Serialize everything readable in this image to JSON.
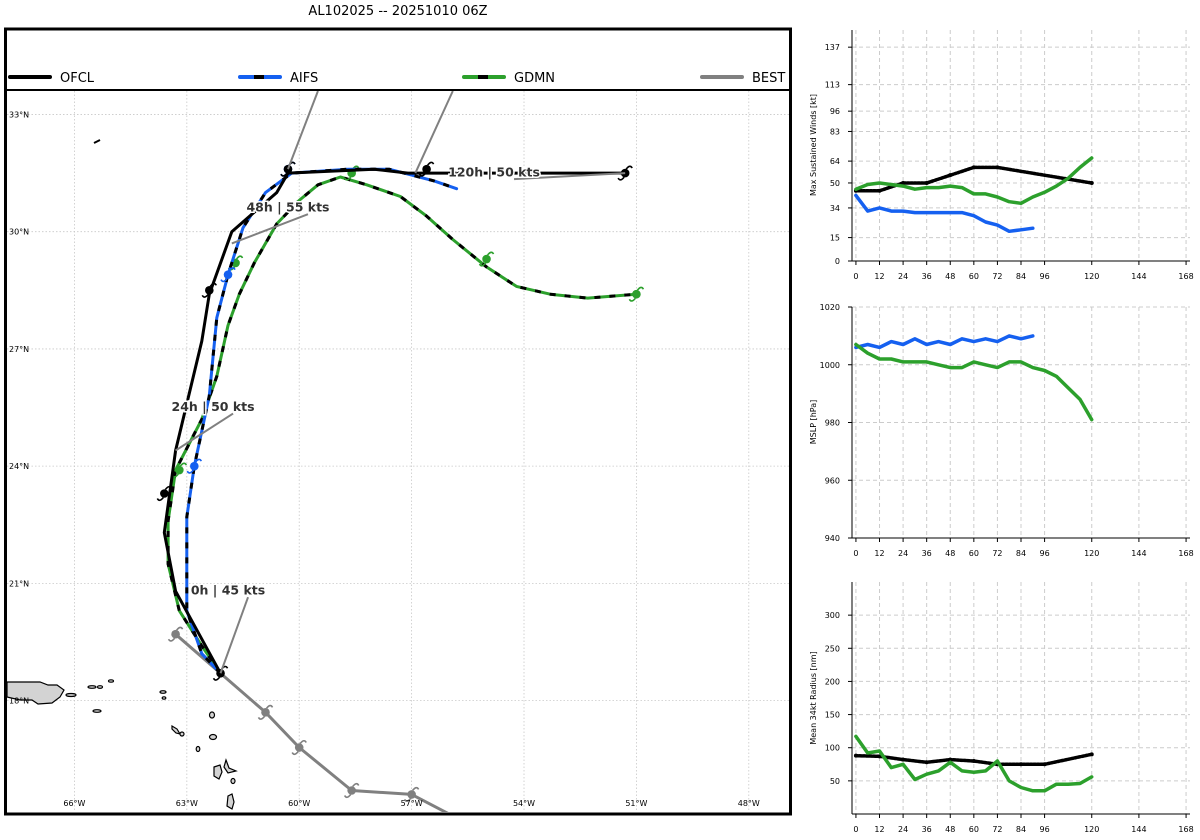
{
  "title": "AL102025 -- 20251010 06Z",
  "colors": {
    "OFCL": "#000000",
    "AIFS": "#1560f0",
    "GDMN": "#2ca02c",
    "BEST": "#808080",
    "land": "#d3d3d3",
    "grid": "#c8c8c8"
  },
  "legend": [
    "OFCL",
    "AIFS",
    "GDMN",
    "BEST"
  ],
  "chart_data": [
    {
      "type": "line",
      "name": "track-map",
      "x_label": "longitude",
      "y_label": "latitude",
      "xlim": [
        -67.8,
        -46.9
      ],
      "ylim": [
        15.15,
        33.6
      ],
      "lat_ticks": [
        {
          "value": 33,
          "label": "33°N"
        },
        {
          "value": 30,
          "label": "30°N"
        },
        {
          "value": 27,
          "label": "27°N"
        },
        {
          "value": 24,
          "label": "24°N"
        },
        {
          "value": 21,
          "label": "21°N"
        },
        {
          "value": 18,
          "label": "18°N"
        }
      ],
      "lon_ticks": [
        {
          "value": -66,
          "label": "66°W"
        },
        {
          "value": -63,
          "label": "63°W"
        },
        {
          "value": -60,
          "label": "60°W"
        },
        {
          "value": -57,
          "label": "57°W"
        },
        {
          "value": -54,
          "label": "54°W"
        },
        {
          "value": -51,
          "label": "51°W"
        },
        {
          "value": -48,
          "label": "48°W"
        }
      ],
      "series": [
        {
          "name": "BEST",
          "points": [
            [
              -56.0,
              15.1
            ],
            [
              -57.0,
              15.6
            ],
            [
              -58.6,
              15.7
            ],
            [
              -60.0,
              16.8
            ],
            [
              -60.9,
              17.7
            ],
            [
              -62.1,
              18.7
            ],
            [
              -63.3,
              19.7
            ]
          ],
          "markers": [
            [
              -57.0,
              15.6
            ],
            [
              -58.6,
              15.7
            ],
            [
              -60.0,
              16.8
            ],
            [
              -60.9,
              17.7
            ],
            [
              -63.3,
              19.7
            ]
          ]
        },
        {
          "name": "GDMN",
          "points": [
            [
              -62.1,
              18.7
            ],
            [
              -62.6,
              19.4
            ],
            [
              -63.2,
              20.3
            ],
            [
              -63.5,
              21.5
            ],
            [
              -63.5,
              22.6
            ],
            [
              -63.3,
              23.9
            ],
            [
              -62.6,
              25.2
            ],
            [
              -62.2,
              26.3
            ],
            [
              -61.9,
              27.6
            ],
            [
              -61.6,
              28.4
            ],
            [
              -61.2,
              29.2
            ],
            [
              -60.6,
              30.2
            ],
            [
              -60.0,
              30.8
            ],
            [
              -59.5,
              31.2
            ],
            [
              -58.9,
              31.4
            ],
            [
              -58.2,
              31.2
            ],
            [
              -57.3,
              30.9
            ],
            [
              -56.6,
              30.4
            ],
            [
              -55.9,
              29.8
            ],
            [
              -55.0,
              29.1
            ],
            [
              -54.2,
              28.6
            ],
            [
              -53.3,
              28.4
            ],
            [
              -52.3,
              28.3
            ],
            [
              -51.0,
              28.4
            ]
          ],
          "markers": [
            [
              -63.2,
              23.9
            ],
            [
              -61.7,
              29.2
            ],
            [
              -58.6,
              31.5
            ],
            [
              -55.0,
              29.3
            ],
            [
              -51.0,
              28.4
            ]
          ]
        },
        {
          "name": "AIFS",
          "points": [
            [
              -62.1,
              18.7
            ],
            [
              -62.6,
              19.2
            ],
            [
              -63.0,
              20.3
            ],
            [
              -63.0,
              22.7
            ],
            [
              -62.8,
              24.0
            ],
            [
              -62.4,
              25.8
            ],
            [
              -62.2,
              27.8
            ],
            [
              -61.9,
              28.9
            ],
            [
              -61.5,
              30.1
            ],
            [
              -60.9,
              31.0
            ],
            [
              -60.2,
              31.5
            ],
            [
              -58.7,
              31.6
            ],
            [
              -57.6,
              31.6
            ],
            [
              -56.4,
              31.3
            ],
            [
              -55.8,
              31.1
            ]
          ],
          "markers": [
            [
              -62.8,
              24.0
            ],
            [
              -61.9,
              28.9
            ],
            [
              -60.3,
              31.6
            ]
          ]
        },
        {
          "name": "OFCL",
          "points": [
            [
              -62.1,
              18.7
            ],
            [
              -63.3,
              20.8
            ],
            [
              -63.6,
              22.3
            ],
            [
              -63.3,
              24.4
            ],
            [
              -62.6,
              27.2
            ],
            [
              -62.4,
              28.4
            ],
            [
              -61.8,
              30.0
            ],
            [
              -60.6,
              31.0
            ],
            [
              -60.3,
              31.5
            ],
            [
              -58.0,
              31.6
            ],
            [
              -57.1,
              31.5
            ],
            [
              -51.3,
              31.5
            ]
          ],
          "markers": [
            [
              -62.1,
              18.7
            ],
            [
              -63.6,
              23.3
            ],
            [
              -62.4,
              28.5
            ],
            [
              -60.3,
              31.6
            ],
            [
              -56.6,
              31.6
            ],
            [
              -51.3,
              31.5
            ]
          ]
        }
      ],
      "annotations": [
        {
          "text": "0h | 45 kts",
          "at": [
            -62.1,
            18.7
          ],
          "label_at": [
            -61.9,
            20.8
          ]
        },
        {
          "text": "24h | 50 kts",
          "at": [
            -63.3,
            24.4
          ],
          "label_at": [
            -62.3,
            25.5
          ]
        },
        {
          "text": "48h | 55 kts",
          "at": [
            -61.8,
            29.7
          ],
          "label_at": [
            -60.3,
            30.6
          ]
        },
        {
          "text": "120h | 50 kts",
          "at": [
            -51.3,
            31.5
          ],
          "label_at": [
            -54.8,
            31.5
          ]
        }
      ],
      "legend_leaders": [
        {
          "name": "AIFS",
          "from": [
            -59.5,
            33.6
          ],
          "to": [
            -60.3,
            31.6
          ]
        },
        {
          "name": "GDMN",
          "from": [
            -55.9,
            33.6
          ],
          "to": [
            -56.9,
            31.5
          ]
        }
      ]
    },
    {
      "type": "line",
      "name": "max-wind",
      "ylabel": "Max Sustained Winds [kt]",
      "xlim": [
        -2,
        170
      ],
      "ylim": [
        0,
        148
      ],
      "xticks": [
        0,
        12,
        24,
        36,
        48,
        60,
        72,
        84,
        96,
        120,
        144,
        168
      ],
      "yticks": [
        0,
        15,
        34,
        50,
        64,
        83,
        96,
        113,
        137
      ],
      "series": [
        {
          "name": "OFCL",
          "x": [
            0,
            12,
            24,
            36,
            48,
            60,
            72,
            120
          ],
          "y": [
            45,
            45,
            50,
            50,
            55,
            60,
            60,
            50
          ]
        },
        {
          "name": "GDMN",
          "x": [
            0,
            6,
            12,
            18,
            24,
            30,
            36,
            42,
            48,
            54,
            60,
            66,
            72,
            78,
            84,
            90,
            96,
            102,
            108,
            114,
            120
          ],
          "y": [
            46,
            49,
            50,
            49,
            48,
            46,
            47,
            47,
            48,
            47,
            43,
            43,
            41,
            38,
            37,
            41,
            44,
            48,
            53,
            60,
            66
          ]
        },
        {
          "name": "AIFS",
          "x": [
            0,
            6,
            12,
            18,
            24,
            30,
            36,
            42,
            48,
            54,
            60,
            66,
            72,
            78,
            84,
            90
          ],
          "y": [
            42,
            32,
            34,
            32,
            32,
            31,
            31,
            31,
            31,
            31,
            29,
            25,
            23,
            19,
            20,
            21
          ]
        }
      ]
    },
    {
      "type": "line",
      "name": "mslp",
      "ylabel": "MSLP [hPa]",
      "xlim": [
        -2,
        170
      ],
      "ylim": [
        940,
        1020
      ],
      "xticks": [
        0,
        12,
        24,
        36,
        48,
        60,
        72,
        84,
        96,
        120,
        144,
        168
      ],
      "yticks": [
        940,
        960,
        980,
        1000,
        1020
      ],
      "series": [
        {
          "name": "AIFS",
          "x": [
            0,
            6,
            12,
            18,
            24,
            30,
            36,
            42,
            48,
            54,
            60,
            66,
            72,
            78,
            84,
            90
          ],
          "y": [
            1006,
            1007,
            1006,
            1008,
            1007,
            1009,
            1007,
            1008,
            1007,
            1009,
            1008,
            1009,
            1008,
            1010,
            1009,
            1010
          ]
        },
        {
          "name": "GDMN",
          "x": [
            0,
            6,
            12,
            18,
            24,
            30,
            36,
            42,
            48,
            54,
            60,
            66,
            72,
            78,
            84,
            90,
            96,
            102,
            108,
            114,
            120
          ],
          "y": [
            1007,
            1004,
            1002,
            1002,
            1001,
            1001,
            1001,
            1000,
            999,
            999,
            1001,
            1000,
            999,
            1001,
            1001,
            999,
            998,
            996,
            992,
            988,
            981
          ]
        }
      ]
    },
    {
      "type": "line",
      "name": "radius-34kt",
      "ylabel": "Mean 34kt Radius [nm]",
      "xlim": [
        -2,
        170
      ],
      "ylim": [
        0,
        350
      ],
      "xticks": [
        0,
        12,
        24,
        36,
        48,
        60,
        72,
        84,
        96,
        120,
        144,
        168
      ],
      "yticks": [
        50,
        100,
        150,
        200,
        250,
        300
      ],
      "series": [
        {
          "name": "OFCL",
          "x": [
            0,
            12,
            24,
            36,
            48,
            60,
            72,
            84,
            96,
            120
          ],
          "y": [
            88,
            87,
            82,
            78,
            82,
            80,
            75,
            75,
            75,
            90
          ]
        },
        {
          "name": "GDMN",
          "x": [
            0,
            6,
            12,
            18,
            24,
            30,
            36,
            42,
            48,
            54,
            60,
            66,
            72,
            78,
            84,
            90,
            96,
            102,
            108,
            114,
            120
          ],
          "y": [
            117,
            92,
            95,
            70,
            75,
            52,
            60,
            65,
            78,
            65,
            63,
            65,
            80,
            50,
            40,
            35,
            35,
            45,
            45,
            46,
            56
          ]
        }
      ]
    }
  ]
}
